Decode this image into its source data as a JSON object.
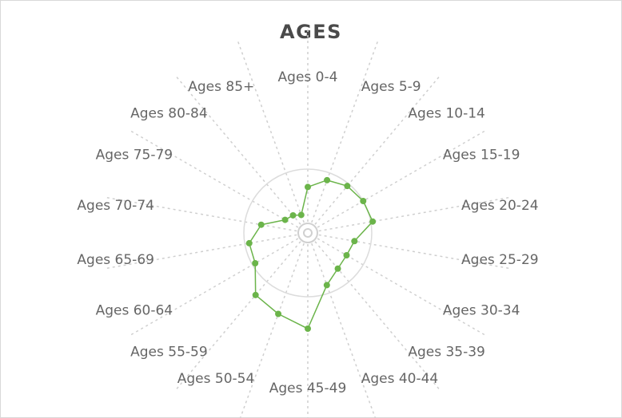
{
  "chart_data": {
    "type": "radar",
    "title": "AGES",
    "categories": [
      "Ages 0-4",
      "Ages 5-9",
      "Ages 10-14",
      "Ages 15-19",
      "Ages 20-24",
      "Ages 25-29",
      "Ages 30-34",
      "Ages 35-39",
      "Ages 40-44",
      "Ages 45-49",
      "Ages 50-54",
      "Ages 55-59",
      "Ages 60-64",
      "Ages 65-69",
      "Ages 70-74",
      "Ages 75-79",
      "Ages 80-84",
      "Ages 85+"
    ],
    "values": [
      0.72,
      0.88,
      0.96,
      1.0,
      1.03,
      0.74,
      0.7,
      0.73,
      0.87,
      1.5,
      1.35,
      1.27,
      0.95,
      0.93,
      0.74,
      0.41,
      0.36,
      0.3
    ],
    "reference_circle": 1.0,
    "series_color": "#6bb44a",
    "grid_color": "#cfcfcf"
  }
}
